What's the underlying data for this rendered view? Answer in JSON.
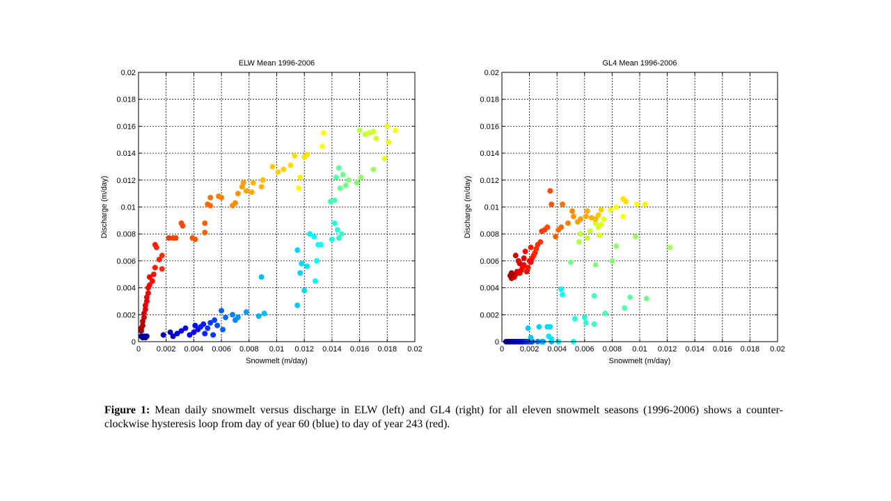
{
  "caption": {
    "label": "Figure 1:",
    "text": "Mean daily snowmelt versus discharge in ELW (left) and GL4 (right) for all eleven snowmelt seasons (1996-2006) shows a counter-clockwise hysteresis loop from day of year 60 (blue) to day of year 243 (red)."
  },
  "chart_data": [
    {
      "type": "scatter",
      "title": "ELW Mean 1996-2006",
      "xlabel": "Snowmelt (m/day)",
      "ylabel": "Discharge (m/day)",
      "xlim": [
        0,
        0.02
      ],
      "ylim": [
        0,
        0.02
      ],
      "xticks": [
        "0",
        "0.002",
        "0.004",
        "0.006",
        "0.008",
        "0.01",
        "0.012",
        "0.014",
        "0.016",
        "0.018",
        "0.02"
      ],
      "yticks": [
        "0",
        "0.002",
        "0.004",
        "0.006",
        "0.008",
        "0.01",
        "0.012",
        "0.014",
        "0.016",
        "0.018",
        "0.02"
      ],
      "grid": true,
      "color_scale": "jet",
      "color_range": [
        60,
        243
      ],
      "points": [
        [
          0.0002,
          0.0004,
          0.02
        ],
        [
          0.0003,
          0.0003,
          0.02
        ],
        [
          0.0004,
          0.0004,
          0.02
        ],
        [
          0.0005,
          0.0003,
          0.03
        ],
        [
          0.0006,
          0.0004,
          0.03
        ],
        [
          0.0018,
          0.0005,
          0.06
        ],
        [
          0.0023,
          0.0007,
          0.07
        ],
        [
          0.0025,
          0.0004,
          0.08
        ],
        [
          0.0028,
          0.0006,
          0.09
        ],
        [
          0.0031,
          0.0008,
          0.1
        ],
        [
          0.0034,
          0.001,
          0.11
        ],
        [
          0.0037,
          0.0005,
          0.12
        ],
        [
          0.004,
          0.0007,
          0.13
        ],
        [
          0.0041,
          0.0012,
          0.13
        ],
        [
          0.0043,
          0.0009,
          0.14
        ],
        [
          0.0045,
          0.0011,
          0.15
        ],
        [
          0.0047,
          0.0013,
          0.15
        ],
        [
          0.0048,
          0.0006,
          0.16
        ],
        [
          0.005,
          0.001,
          0.17
        ],
        [
          0.0052,
          0.0014,
          0.18
        ],
        [
          0.0054,
          0.0005,
          0.18
        ],
        [
          0.0055,
          0.0016,
          0.19
        ],
        [
          0.0057,
          0.0012,
          0.2
        ],
        [
          0.006,
          0.0023,
          0.22
        ],
        [
          0.0061,
          0.0009,
          0.22
        ],
        [
          0.0063,
          0.0018,
          0.23
        ],
        [
          0.0068,
          0.002,
          0.25
        ],
        [
          0.007,
          0.0016,
          0.26
        ],
        [
          0.0072,
          0.0018,
          0.27
        ],
        [
          0.0078,
          0.0022,
          0.28
        ],
        [
          0.0087,
          0.0019,
          0.3
        ],
        [
          0.0089,
          0.0048,
          0.31
        ],
        [
          0.0091,
          0.0021,
          0.31
        ],
        [
          0.0115,
          0.0027,
          0.32
        ],
        [
          0.0117,
          0.0051,
          0.33
        ],
        [
          0.0115,
          0.0068,
          0.33
        ],
        [
          0.0118,
          0.0058,
          0.34
        ],
        [
          0.012,
          0.0038,
          0.34
        ],
        [
          0.0122,
          0.0056,
          0.35
        ],
        [
          0.0124,
          0.008,
          0.36
        ],
        [
          0.0127,
          0.0078,
          0.37
        ],
        [
          0.0128,
          0.0045,
          0.37
        ],
        [
          0.0129,
          0.006,
          0.38
        ],
        [
          0.013,
          0.0072,
          0.38
        ],
        [
          0.0132,
          0.0072,
          0.39
        ],
        [
          0.014,
          0.0076,
          0.4
        ],
        [
          0.0142,
          0.0088,
          0.41
        ],
        [
          0.0144,
          0.0083,
          0.41
        ],
        [
          0.0145,
          0.0077,
          0.42
        ],
        [
          0.0147,
          0.008,
          0.43
        ],
        [
          0.0139,
          0.0104,
          0.44
        ],
        [
          0.0142,
          0.0105,
          0.45
        ],
        [
          0.0143,
          0.0122,
          0.46
        ],
        [
          0.0145,
          0.0129,
          0.47
        ],
        [
          0.0146,
          0.0114,
          0.48
        ],
        [
          0.0148,
          0.0124,
          0.48
        ],
        [
          0.015,
          0.0116,
          0.49
        ],
        [
          0.0152,
          0.012,
          0.5
        ],
        [
          0.0158,
          0.0118,
          0.51
        ],
        [
          0.0161,
          0.0122,
          0.52
        ],
        [
          0.017,
          0.0128,
          0.53
        ],
        [
          0.016,
          0.0157,
          0.56
        ],
        [
          0.0164,
          0.0154,
          0.57
        ],
        [
          0.0167,
          0.0155,
          0.57
        ],
        [
          0.017,
          0.0156,
          0.58
        ],
        [
          0.0172,
          0.0151,
          0.59
        ],
        [
          0.0178,
          0.0136,
          0.6
        ],
        [
          0.018,
          0.016,
          0.6
        ],
        [
          0.0181,
          0.0148,
          0.61
        ],
        [
          0.0186,
          0.0157,
          0.62
        ],
        [
          0.0116,
          0.0114,
          0.63
        ],
        [
          0.0117,
          0.0122,
          0.64
        ],
        [
          0.0122,
          0.0139,
          0.65
        ],
        [
          0.012,
          0.0137,
          0.65
        ],
        [
          0.0113,
          0.0138,
          0.66
        ],
        [
          0.011,
          0.0131,
          0.66
        ],
        [
          0.0105,
          0.0128,
          0.67
        ],
        [
          0.0101,
          0.0126,
          0.67
        ],
        [
          0.0097,
          0.013,
          0.68
        ],
        [
          0.0133,
          0.0145,
          0.62
        ],
        [
          0.0134,
          0.0155,
          0.63
        ],
        [
          0.009,
          0.012,
          0.69
        ],
        [
          0.0089,
          0.0115,
          0.7
        ],
        [
          0.0083,
          0.0118,
          0.7
        ],
        [
          0.0082,
          0.0111,
          0.71
        ],
        [
          0.0078,
          0.0112,
          0.71
        ],
        [
          0.0076,
          0.0118,
          0.72
        ],
        [
          0.0075,
          0.0115,
          0.72
        ],
        [
          0.0072,
          0.011,
          0.73
        ],
        [
          0.0068,
          0.0101,
          0.74
        ],
        [
          0.007,
          0.0103,
          0.74
        ],
        [
          0.006,
          0.0107,
          0.75
        ],
        [
          0.0058,
          0.0108,
          0.75
        ],
        [
          0.0052,
          0.0107,
          0.76
        ],
        [
          0.005,
          0.0102,
          0.77
        ],
        [
          0.0052,
          0.0101,
          0.77
        ],
        [
          0.0048,
          0.0088,
          0.78
        ],
        [
          0.0048,
          0.0081,
          0.78
        ],
        [
          0.0041,
          0.0076,
          0.79
        ],
        [
          0.0039,
          0.0077,
          0.79
        ],
        [
          0.0032,
          0.0086,
          0.8
        ],
        [
          0.0031,
          0.0088,
          0.8
        ],
        [
          0.0027,
          0.0077,
          0.81
        ],
        [
          0.0025,
          0.0077,
          0.81
        ],
        [
          0.0022,
          0.0077,
          0.82
        ],
        [
          0.0017,
          0.0064,
          0.83
        ],
        [
          0.0017,
          0.0054,
          0.83
        ],
        [
          0.0015,
          0.0061,
          0.84
        ],
        [
          0.0013,
          0.007,
          0.84
        ],
        [
          0.0012,
          0.0055,
          0.85
        ],
        [
          0.0012,
          0.0072,
          0.85
        ],
        [
          0.0011,
          0.005,
          0.86
        ],
        [
          0.001,
          0.0045,
          0.86
        ],
        [
          0.0008,
          0.0048,
          0.87
        ],
        [
          0.0008,
          0.0042,
          0.87
        ],
        [
          0.0007,
          0.004,
          0.88
        ],
        [
          0.0007,
          0.0036,
          0.89
        ],
        [
          0.0006,
          0.0033,
          0.89
        ],
        [
          0.0006,
          0.003,
          0.9
        ],
        [
          0.0005,
          0.0027,
          0.9
        ],
        [
          0.0005,
          0.0024,
          0.91
        ],
        [
          0.0004,
          0.0021,
          0.92
        ],
        [
          0.0004,
          0.0018,
          0.93
        ],
        [
          0.0003,
          0.0015,
          0.94
        ],
        [
          0.0003,
          0.0012,
          0.95
        ],
        [
          0.0002,
          0.001,
          0.96
        ],
        [
          0.0002,
          0.0008,
          0.97
        ]
      ]
    },
    {
      "type": "scatter",
      "title": "GL4 Mean 1996-2006",
      "xlabel": "Snowmelt (m/day)",
      "ylabel": "Discharge (m/day)",
      "xlim": [
        0,
        0.02
      ],
      "ylim": [
        0,
        0.02
      ],
      "xticks": [
        "0",
        "0.002",
        "0.004",
        "0.006",
        "0.008",
        "0.01",
        "0.012",
        "0.014",
        "0.016",
        "0.018",
        "0.02"
      ],
      "yticks": [
        "0",
        "0.002",
        "0.004",
        "0.006",
        "0.008",
        "0.01",
        "0.012",
        "0.014",
        "0.016",
        "0.018",
        "0.02"
      ],
      "grid": true,
      "color_scale": "jet",
      "color_range": [
        60,
        243
      ],
      "points": [
        [
          0.0003,
          0.0,
          0.03
        ],
        [
          0.0004,
          0.0,
          0.03
        ],
        [
          0.0005,
          0.0,
          0.04
        ],
        [
          0.0006,
          0.0,
          0.04
        ],
        [
          0.0007,
          0.0,
          0.05
        ],
        [
          0.0008,
          0.0,
          0.06
        ],
        [
          0.0009,
          0.0,
          0.07
        ],
        [
          0.001,
          0.0,
          0.08
        ],
        [
          0.0011,
          0.0,
          0.09
        ],
        [
          0.0012,
          0.0,
          0.1
        ],
        [
          0.0013,
          0.0,
          0.11
        ],
        [
          0.0014,
          0.0,
          0.12
        ],
        [
          0.0015,
          0.0,
          0.13
        ],
        [
          0.0016,
          0.0,
          0.14
        ],
        [
          0.0017,
          0.0,
          0.15
        ],
        [
          0.0018,
          0.0,
          0.16
        ],
        [
          0.0019,
          0.0,
          0.17
        ],
        [
          0.002,
          0.0,
          0.18
        ],
        [
          0.0021,
          0.0,
          0.19
        ],
        [
          0.0022,
          0.0,
          0.2
        ],
        [
          0.0026,
          0.0,
          0.25
        ],
        [
          0.0029,
          0.0,
          0.28
        ],
        [
          0.003,
          0.0,
          0.3
        ],
        [
          0.0036,
          0.0,
          0.31
        ],
        [
          0.0019,
          0.001,
          0.32
        ],
        [
          0.0021,
          0.0003,
          0.32
        ],
        [
          0.0027,
          0.0011,
          0.33
        ],
        [
          0.0033,
          0.0011,
          0.34
        ],
        [
          0.0035,
          0.0011,
          0.34
        ],
        [
          0.0034,
          0.0004,
          0.35
        ],
        [
          0.0036,
          0.0002,
          0.35
        ],
        [
          0.0041,
          0.0,
          0.36
        ],
        [
          0.0043,
          0.0039,
          0.37
        ],
        [
          0.0044,
          0.0035,
          0.38
        ],
        [
          0.0052,
          0.0,
          0.4
        ],
        [
          0.0053,
          0.0017,
          0.41
        ],
        [
          0.006,
          0.0018,
          0.41
        ],
        [
          0.0061,
          0.0014,
          0.42
        ],
        [
          0.0067,
          0.0013,
          0.43
        ],
        [
          0.0067,
          0.0034,
          0.44
        ],
        [
          0.0075,
          0.0021,
          0.45
        ],
        [
          0.0089,
          0.0025,
          0.46
        ],
        [
          0.0093,
          0.0033,
          0.47
        ],
        [
          0.0105,
          0.0032,
          0.48
        ],
        [
          0.005,
          0.0059,
          0.49
        ],
        [
          0.0068,
          0.0057,
          0.5
        ],
        [
          0.008,
          0.006,
          0.51
        ],
        [
          0.0083,
          0.0071,
          0.52
        ],
        [
          0.0097,
          0.0078,
          0.53
        ],
        [
          0.0122,
          0.007,
          0.54
        ],
        [
          0.0056,
          0.0074,
          0.55
        ],
        [
          0.0057,
          0.008,
          0.56
        ],
        [
          0.0062,
          0.0077,
          0.57
        ],
        [
          0.0064,
          0.0082,
          0.57
        ],
        [
          0.0068,
          0.0088,
          0.58
        ],
        [
          0.007,
          0.0085,
          0.59
        ],
        [
          0.0071,
          0.0079,
          0.59
        ],
        [
          0.0072,
          0.0087,
          0.6
        ],
        [
          0.0074,
          0.0091,
          0.6
        ],
        [
          0.0079,
          0.0098,
          0.61
        ],
        [
          0.0083,
          0.01,
          0.61
        ],
        [
          0.0088,
          0.0093,
          0.62
        ],
        [
          0.0098,
          0.0102,
          0.63
        ],
        [
          0.0104,
          0.0102,
          0.64
        ],
        [
          0.0088,
          0.0106,
          0.65
        ],
        [
          0.009,
          0.0104,
          0.66
        ],
        [
          0.0072,
          0.0098,
          0.67
        ],
        [
          0.007,
          0.0094,
          0.68
        ],
        [
          0.0068,
          0.0091,
          0.69
        ],
        [
          0.0065,
          0.0092,
          0.7
        ],
        [
          0.0062,
          0.0097,
          0.7
        ],
        [
          0.0061,
          0.0093,
          0.71
        ],
        [
          0.0057,
          0.0091,
          0.72
        ],
        [
          0.0055,
          0.0089,
          0.72
        ],
        [
          0.0052,
          0.0093,
          0.73
        ],
        [
          0.0051,
          0.0097,
          0.74
        ],
        [
          0.0048,
          0.0088,
          0.75
        ],
        [
          0.0044,
          0.0102,
          0.76
        ],
        [
          0.0043,
          0.0085,
          0.77
        ],
        [
          0.0041,
          0.0083,
          0.77
        ],
        [
          0.0039,
          0.0078,
          0.78
        ],
        [
          0.0036,
          0.0102,
          0.79
        ],
        [
          0.0035,
          0.0112,
          0.8
        ],
        [
          0.0033,
          0.0085,
          0.8
        ],
        [
          0.0031,
          0.0083,
          0.81
        ],
        [
          0.0029,
          0.0082,
          0.82
        ],
        [
          0.0028,
          0.0074,
          0.82
        ],
        [
          0.0026,
          0.0072,
          0.83
        ],
        [
          0.0025,
          0.0069,
          0.83
        ],
        [
          0.0024,
          0.0066,
          0.84
        ],
        [
          0.0023,
          0.0064,
          0.84
        ],
        [
          0.0022,
          0.0062,
          0.85
        ],
        [
          0.0021,
          0.007,
          0.85
        ],
        [
          0.002,
          0.006,
          0.86
        ],
        [
          0.0019,
          0.0055,
          0.86
        ],
        [
          0.0018,
          0.0052,
          0.87
        ],
        [
          0.0017,
          0.0067,
          0.87
        ],
        [
          0.0016,
          0.0057,
          0.88
        ],
        [
          0.0015,
          0.0055,
          0.88
        ],
        [
          0.0014,
          0.0053,
          0.89
        ],
        [
          0.0013,
          0.0051,
          0.89
        ],
        [
          0.0012,
          0.006,
          0.9
        ],
        [
          0.0011,
          0.0052,
          0.9
        ],
        [
          0.001,
          0.005,
          0.91
        ],
        [
          0.0009,
          0.0048,
          0.92
        ],
        [
          0.0008,
          0.005,
          0.93
        ],
        [
          0.0007,
          0.0047,
          0.94
        ],
        [
          0.0007,
          0.0051,
          0.95
        ],
        [
          0.0006,
          0.0049,
          0.96
        ],
        [
          0.001,
          0.0064,
          0.92
        ],
        [
          0.0013,
          0.0058,
          0.91
        ],
        [
          0.0016,
          0.0062,
          0.9
        ],
        [
          0.0021,
          0.0059,
          0.88
        ]
      ]
    }
  ]
}
